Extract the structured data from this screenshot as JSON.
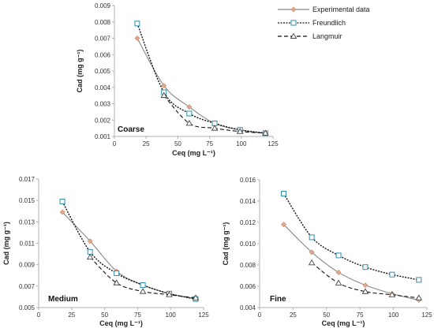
{
  "legend": {
    "experimental": "Experimental data",
    "freundlich": "Freundlich",
    "langmuir": "Langmuir"
  },
  "colors": {
    "experimental_line": "#888888",
    "experimental_marker": "#e2a98a",
    "freundlich_line": "#111111",
    "freundlich_marker": "#2f8fae",
    "langmuir_line": "#111111",
    "langmuir_marker": "#444444",
    "axis": "#b0b0b0"
  },
  "chart_data": [
    {
      "type": "line",
      "panel": "Coarse",
      "xlabel": "Ceq (mg L⁻¹)",
      "ylabel": "Cad (mg g⁻¹)",
      "xlim": [
        0,
        125
      ],
      "ylim": [
        0.001,
        0.009
      ],
      "xticks": [
        "0",
        "25",
        "50",
        "75",
        "100",
        "125"
      ],
      "yticks": [
        "0.001",
        "0.002",
        "0.003",
        "0.004",
        "0.005",
        "0.006",
        "0.007",
        "0.008",
        "0.009"
      ],
      "series": [
        {
          "name": "Experimental data",
          "x": [
            18,
            39,
            59,
            79,
            99,
            119
          ],
          "y": [
            0.007,
            0.0041,
            0.0028,
            0.0018,
            0.0014,
            0.0012
          ]
        },
        {
          "name": "Freundlich",
          "x": [
            18,
            39,
            59,
            79,
            99,
            119
          ],
          "y": [
            0.0079,
            0.0037,
            0.0024,
            0.0018,
            0.0014,
            0.0012
          ]
        },
        {
          "name": "Langmuir",
          "x": [
            39,
            59,
            79,
            99,
            119
          ],
          "y": [
            0.0035,
            0.0018,
            0.0015,
            0.0013,
            0.0012
          ]
        }
      ]
    },
    {
      "type": "line",
      "panel": "Medium",
      "xlabel": "Ceq (mg L⁻¹)",
      "ylabel": "Cad (mg g⁻¹)",
      "xlim": [
        0,
        125
      ],
      "ylim": [
        0.005,
        0.017
      ],
      "xticks": [
        "0",
        "25",
        "50",
        "75",
        "100",
        "125"
      ],
      "yticks": [
        "0.005",
        "0.007",
        "0.009",
        "0.011",
        "0.013",
        "0.015",
        "0.017"
      ],
      "series": [
        {
          "name": "Experimental data",
          "x": [
            18,
            39,
            59,
            79,
            99,
            119
          ],
          "y": [
            0.0139,
            0.0112,
            0.0084,
            0.0071,
            0.0063,
            0.0058
          ]
        },
        {
          "name": "Freundlich",
          "x": [
            18,
            39,
            59,
            79,
            99,
            119
          ],
          "y": [
            0.0149,
            0.0102,
            0.0082,
            0.0071,
            0.0063,
            0.0058
          ]
        },
        {
          "name": "Langmuir",
          "x": [
            39,
            59,
            79,
            99,
            119
          ],
          "y": [
            0.0097,
            0.0073,
            0.0065,
            0.0062,
            0.0059
          ]
        }
      ]
    },
    {
      "type": "line",
      "panel": "Fine",
      "xlabel": "Ceq (mg L⁻¹)",
      "ylabel": "Cad (mg g⁻¹)",
      "xlim": [
        0,
        125
      ],
      "ylim": [
        0.004,
        0.016
      ],
      "xticks": [
        "0",
        "25",
        "50",
        "75",
        "100",
        "125"
      ],
      "yticks": [
        "0.004",
        "0.006",
        "0.008",
        "0.010",
        "0.012",
        "0.014",
        "0.016"
      ],
      "series": [
        {
          "name": "Experimental data",
          "x": [
            18,
            39,
            59,
            79,
            99,
            119
          ],
          "y": [
            0.0118,
            0.0092,
            0.0073,
            0.0061,
            0.0053,
            0.0047
          ]
        },
        {
          "name": "Freundlich",
          "x": [
            18,
            39,
            59,
            79,
            99,
            119
          ],
          "y": [
            0.0147,
            0.0106,
            0.0089,
            0.0078,
            0.0071,
            0.0066
          ]
        },
        {
          "name": "Langmuir",
          "x": [
            39,
            59,
            79,
            99,
            119
          ],
          "y": [
            0.0082,
            0.0063,
            0.0055,
            0.0052,
            0.0049
          ]
        }
      ]
    }
  ]
}
